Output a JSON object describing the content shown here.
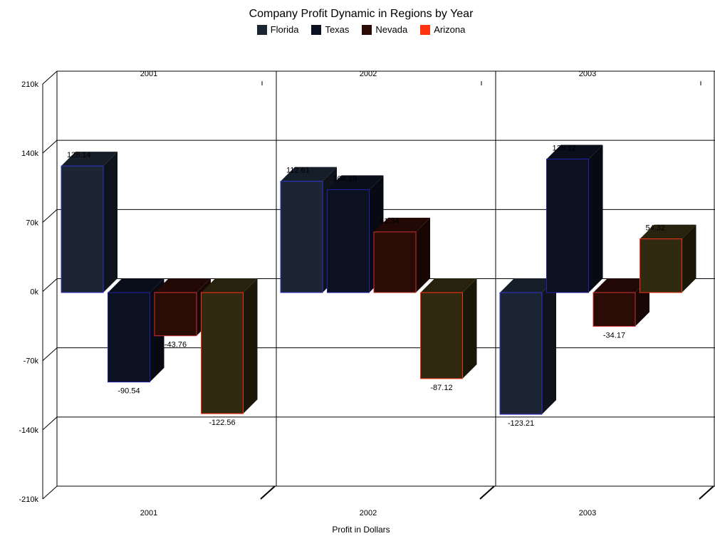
{
  "chart_data": {
    "type": "bar",
    "title": "Company Profit Dynamic in Regions by Year",
    "xlabel": "Profit in Dollars",
    "ylabel": "",
    "categories": [
      "2001",
      "2002",
      "2003"
    ],
    "yticks": [
      "-210k",
      "-140k",
      "-70k",
      "0k",
      "70k",
      "140k",
      "210k"
    ],
    "ylim": [
      -210,
      210
    ],
    "grid": true,
    "legend": "top-center",
    "three_d": true,
    "series": [
      {
        "name": "Florida",
        "color": "#1b2533",
        "edge": "#3333cc",
        "values": [
          128.14,
          112.61,
          -123.21
        ],
        "labels": [
          "128.14",
          "112.61",
          "-123.21"
        ]
      },
      {
        "name": "Texas",
        "color": "#0c1122",
        "edge": "#2222aa",
        "values": [
          -90.54,
          104.19,
          135.12
        ],
        "labels": [
          "-90.54",
          "104.19",
          "135.12"
        ]
      },
      {
        "name": "Nevada",
        "color": "#2a0b06",
        "edge": "#cc3333",
        "values": [
          -43.76,
          61.34,
          -34.17
        ],
        "labels": [
          "-43.76",
          "61.34",
          "-34.17"
        ]
      },
      {
        "name": "Arizona",
        "color": "#2f2a10",
        "edge": "#ff3311",
        "values": [
          -122.56,
          -87.12,
          54.32
        ],
        "labels": [
          "-122.56",
          "-87.12",
          "54.32"
        ]
      }
    ],
    "legend_colors": [
      "#1b2533",
      "#0c1122",
      "#2a0b06",
      "#ff3311"
    ]
  }
}
